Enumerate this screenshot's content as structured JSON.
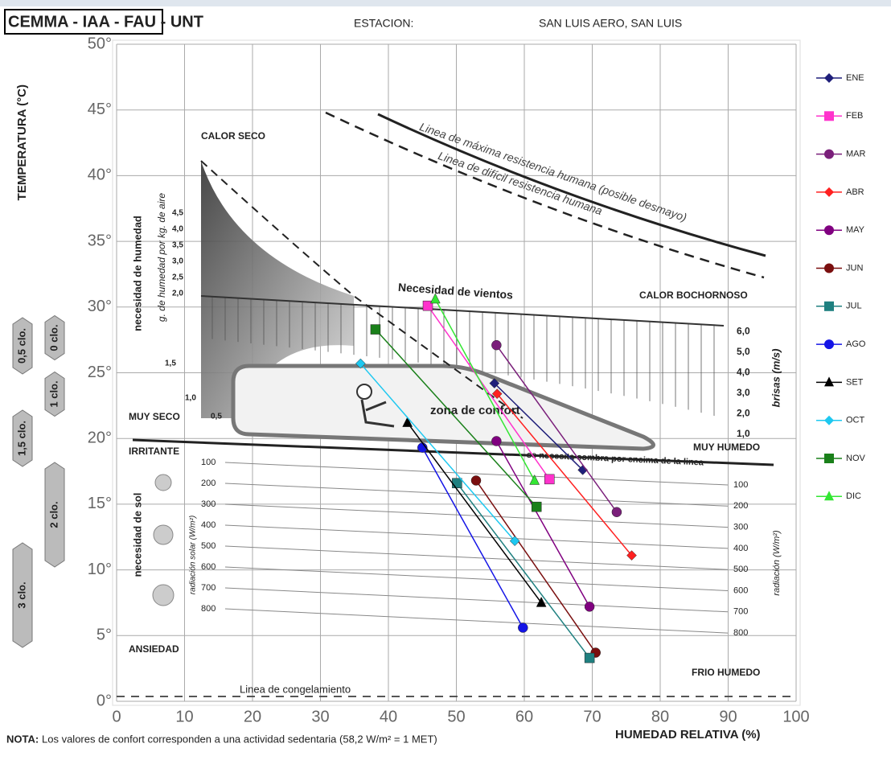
{
  "chart_data": {
    "type": "line",
    "title": "CEMMA - IAA - FAU - UNT",
    "station_label": "ESTACION:",
    "station": "SAN LUIS AERO, SAN LUIS",
    "ylabel": "TEMPERATURA (°C)",
    "xlabel": "HUMEDAD RELATIVA (%)",
    "note_bold": "NOTA:",
    "note": "Los valores de confort corresponden a una actividad sedentaria (58,2 W/m² = 1 MET)",
    "xlim": [
      0,
      100
    ],
    "ylim": [
      0,
      50
    ],
    "xticks": [
      0,
      10,
      20,
      30,
      40,
      50,
      60,
      70,
      80,
      90,
      100
    ],
    "yticks": [
      {
        "value": 0,
        "label": "0°"
      },
      {
        "value": 5,
        "label": "5°"
      },
      {
        "value": 10,
        "label": "10°"
      },
      {
        "value": 15,
        "label": "15°"
      },
      {
        "value": 20,
        "label": "20°"
      },
      {
        "value": 25,
        "label": "25°"
      },
      {
        "value": 30,
        "label": "30°"
      },
      {
        "value": 35,
        "label": "35°"
      },
      {
        "value": 40,
        "label": "40°"
      },
      {
        "value": 45,
        "label": "45°"
      },
      {
        "value": 50,
        "label": "50°"
      }
    ],
    "grid": true,
    "zones": {
      "hot_dry": "CALOR SECO",
      "hot_humid": "CALOR BOCHORNOSO",
      "very_dry": "MUY SECO",
      "very_humid": "MUY HUMEDO",
      "irritant": "IRRITANTE",
      "anxiety": "ANSIEDAD",
      "cold_humid": "FRIO HUMEDO",
      "comfort": "zona de confort",
      "wind": "Necesidad de vientos",
      "shade": "se necesita sombra por encima de la linea",
      "freeze": "Linea de congelamiento",
      "max_resist": "Linea de máxima resistencia humana (posible desmayo)",
      "hard_resist": "Linea de difícil resistencia humana",
      "humidity_need": "necesidad de humedad",
      "humidity_unit": "g. de humedad por kg. de aire",
      "sun_need": "necesidad de sol",
      "solar_left": "radiación solar (W/m²)",
      "solar_right": "radiación (W/m²)",
      "breeze": "brisas (m/s)"
    },
    "humidity_labels": [
      "0,5",
      "1,0",
      "1,5",
      "2,0",
      "2,5",
      "3,0",
      "3,5",
      "4,0",
      "4,5"
    ],
    "breeze_labels": [
      "1,0",
      "2,0",
      "3,0",
      "4,0",
      "5,0",
      "6,0"
    ],
    "radiation_labels": [
      100,
      200,
      300,
      400,
      500,
      600,
      700,
      800
    ],
    "clo_labels": [
      "0 clo.",
      "0,5 clo.",
      "1 clo.",
      "1,5 clo.",
      "2 clo.",
      "3 clo."
    ],
    "series": [
      {
        "name": "ENE",
        "color": "#1f1f7a",
        "marker": "diamond",
        "x": [
          55.6,
          68.6
        ],
        "values": [
          24.2,
          17.6
        ]
      },
      {
        "name": "FEB",
        "color": "#ff33cc",
        "marker": "square",
        "x": [
          45.8,
          63.7
        ],
        "values": [
          30.1,
          16.9
        ]
      },
      {
        "name": "MAR",
        "color": "#7a1f7a",
        "marker": "circle",
        "x": [
          55.9,
          73.6
        ],
        "values": [
          27.1,
          14.4
        ]
      },
      {
        "name": "ABR",
        "color": "#ff2020",
        "marker": "diamond",
        "x": [
          56.0,
          75.8
        ],
        "values": [
          23.4,
          11.1
        ]
      },
      {
        "name": "MAY",
        "color": "#800080",
        "marker": "circle",
        "x": [
          55.9,
          69.6
        ],
        "values": [
          19.8,
          7.2
        ]
      },
      {
        "name": "JUN",
        "color": "#7a0f0f",
        "marker": "circle",
        "x": [
          52.9,
          70.5
        ],
        "values": [
          16.8,
          3.7
        ]
      },
      {
        "name": "JUL",
        "color": "#1f8080",
        "marker": "square",
        "x": [
          50.1,
          69.6
        ],
        "values": [
          16.6,
          3.3
        ]
      },
      {
        "name": "AGO",
        "color": "#1414e6",
        "marker": "circle",
        "x": [
          45.0,
          59.8
        ],
        "values": [
          19.3,
          5.6
        ]
      },
      {
        "name": "SET",
        "color": "#000000",
        "marker": "triangle",
        "x": [
          42.8,
          62.5
        ],
        "values": [
          21.2,
          7.5
        ]
      },
      {
        "name": "OCT",
        "color": "#1ec8f0",
        "marker": "diamond",
        "x": [
          35.9,
          58.6
        ],
        "values": [
          25.7,
          12.2
        ]
      },
      {
        "name": "NOV",
        "color": "#1a801a",
        "marker": "square",
        "x": [
          38.1,
          61.8
        ],
        "values": [
          28.3,
          14.8
        ]
      },
      {
        "name": "DIC",
        "color": "#33e633",
        "marker": "triangle",
        "x": [
          46.9,
          61.5
        ],
        "values": [
          30.6,
          16.8
        ]
      }
    ]
  }
}
